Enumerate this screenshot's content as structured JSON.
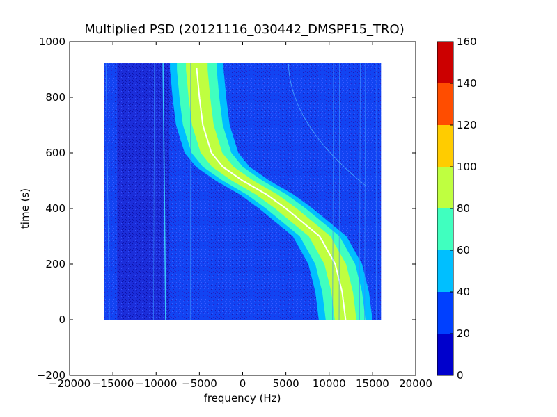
{
  "chart_data": {
    "type": "heatmap",
    "title": "Multiplied PSD (20121116_030442_DMSPF15_TRO)",
    "xlabel": "frequency (Hz)",
    "ylabel": "time (s)",
    "xlim": [
      -20000,
      20000
    ],
    "ylim": [
      -200,
      1000
    ],
    "x_ticks": [
      -20000,
      -15000,
      -10000,
      -5000,
      0,
      5000,
      10000,
      15000,
      20000
    ],
    "x_tick_labels": [
      "−20000",
      "−15000",
      "−10000",
      "−5000",
      "0",
      "5000",
      "10000",
      "15000",
      "20000"
    ],
    "y_ticks": [
      -200,
      0,
      200,
      400,
      600,
      800,
      1000
    ],
    "y_tick_labels": [
      "−200",
      "0",
      "200",
      "400",
      "600",
      "800",
      "1000"
    ],
    "data_extent": {
      "freq_min": -16000,
      "freq_max": 16000,
      "time_min": 0,
      "time_max": 925
    },
    "doppler_track": {
      "description": "S-shaped Doppler curve of satellite signal (frequency vs time)",
      "points": [
        {
          "time": 0,
          "freq": 11900
        },
        {
          "time": 100,
          "freq": 11500
        },
        {
          "time": 200,
          "freq": 10700
        },
        {
          "time": 300,
          "freq": 8900
        },
        {
          "time": 400,
          "freq": 5000
        },
        {
          "time": 450,
          "freq": 2800
        },
        {
          "time": 500,
          "freq": 0
        },
        {
          "time": 550,
          "freq": -2300
        },
        {
          "time": 600,
          "freq": -3600
        },
        {
          "time": 700,
          "freq": -4600
        },
        {
          "time": 800,
          "freq": -5000
        },
        {
          "time": 900,
          "freq": -5300
        }
      ]
    },
    "colorbar": {
      "min": 0,
      "max": 160,
      "ticks": [
        0,
        20,
        40,
        60,
        80,
        100,
        120,
        140,
        160
      ],
      "tick_labels": [
        "0",
        "20",
        "40",
        "60",
        "80",
        "100",
        "120",
        "140",
        "160"
      ],
      "levels": [
        {
          "from": 0,
          "to": 20,
          "color": "#0000cc"
        },
        {
          "from": 20,
          "to": 40,
          "color": "#0040ff"
        },
        {
          "from": 40,
          "to": 60,
          "color": "#00bfff"
        },
        {
          "from": 60,
          "to": 80,
          "color": "#40ffbf"
        },
        {
          "from": 80,
          "to": 100,
          "color": "#bfff40"
        },
        {
          "from": 100,
          "to": 120,
          "color": "#ffcc00"
        },
        {
          "from": 120,
          "to": 140,
          "color": "#ff4d00"
        },
        {
          "from": 140,
          "to": 160,
          "color": "#cc0000"
        }
      ]
    },
    "grid": false,
    "colors": {
      "background_level": "#0a3cf0",
      "low_level": "#1a1ad0",
      "band_outer": "#00bfff",
      "band_mid": "#40ffbf",
      "band_inner": "#bfff40",
      "track_line": "#ffffff"
    }
  }
}
